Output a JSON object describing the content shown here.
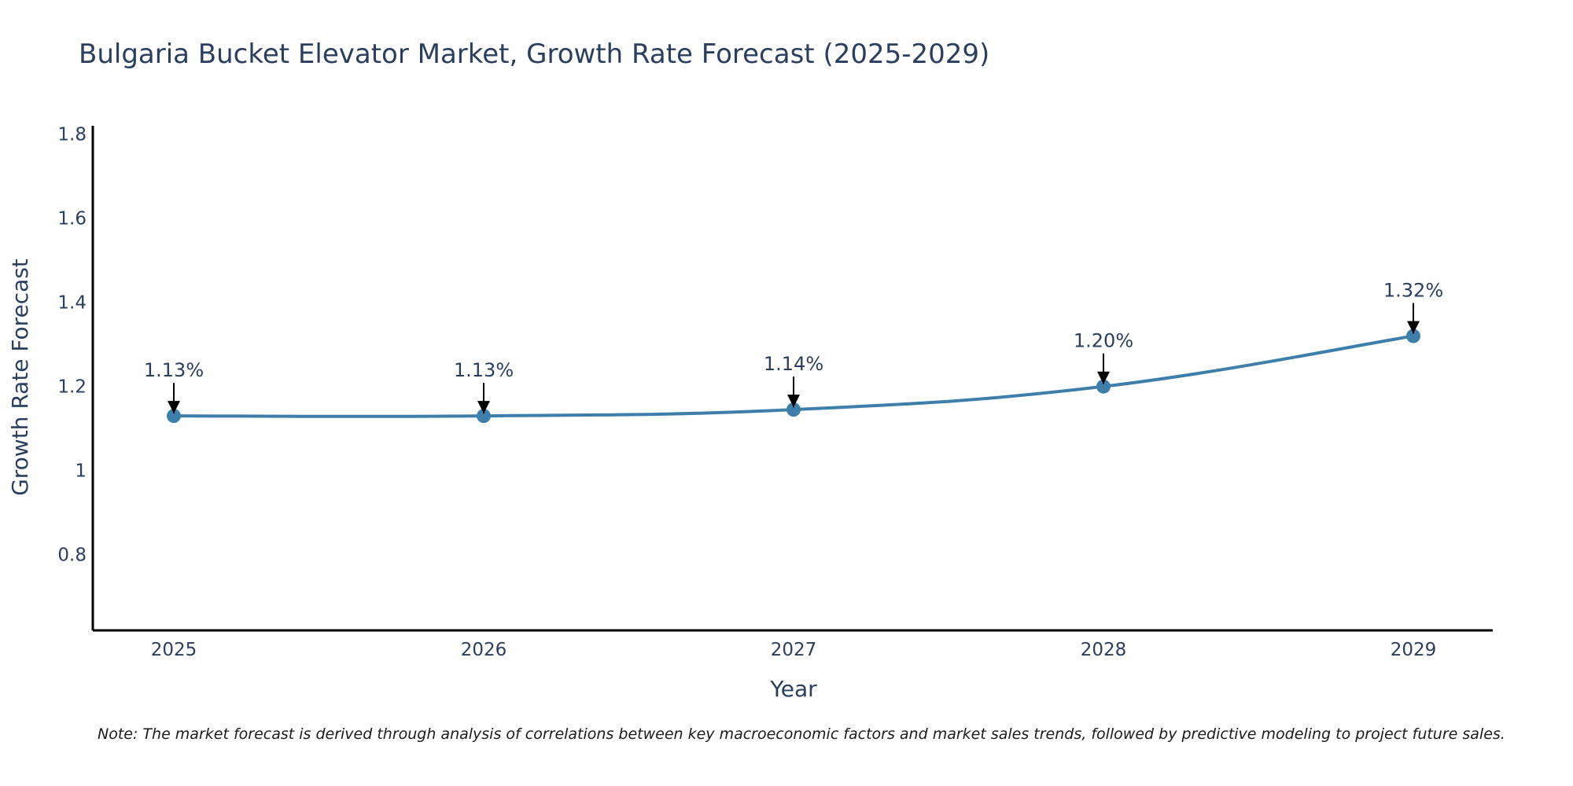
{
  "chart_data": {
    "type": "line",
    "title": "Bulgaria Bucket Elevator Market, Growth Rate Forecast (2025-2029)",
    "xlabel": "Year",
    "ylabel": "Growth Rate Forecast",
    "categories": [
      "2025",
      "2026",
      "2027",
      "2028",
      "2029"
    ],
    "values": [
      1.13,
      1.13,
      1.145,
      1.2,
      1.32
    ],
    "data_labels": [
      "1.13%",
      "1.13%",
      "1.14%",
      "1.20%",
      "1.32%"
    ],
    "ylim": [
      0.62,
      1.82
    ],
    "yticks": [
      0.8,
      1,
      1.2,
      1.4,
      1.6,
      1.8
    ],
    "ytick_labels": [
      "0.8",
      "1",
      "1.2",
      "1.4",
      "1.6",
      "1.8"
    ],
    "grid": false,
    "legend": "none",
    "note": "Note: The market forecast is derived through analysis of correlations between key macroeconomic factors and market sales trends, followed by predictive modeling to project future sales."
  },
  "colors": {
    "line": "#3d7eaa",
    "marker": "#3d7eaa",
    "axis": "#000000",
    "text": "#2a3f5f",
    "arrow": "#000000"
  }
}
